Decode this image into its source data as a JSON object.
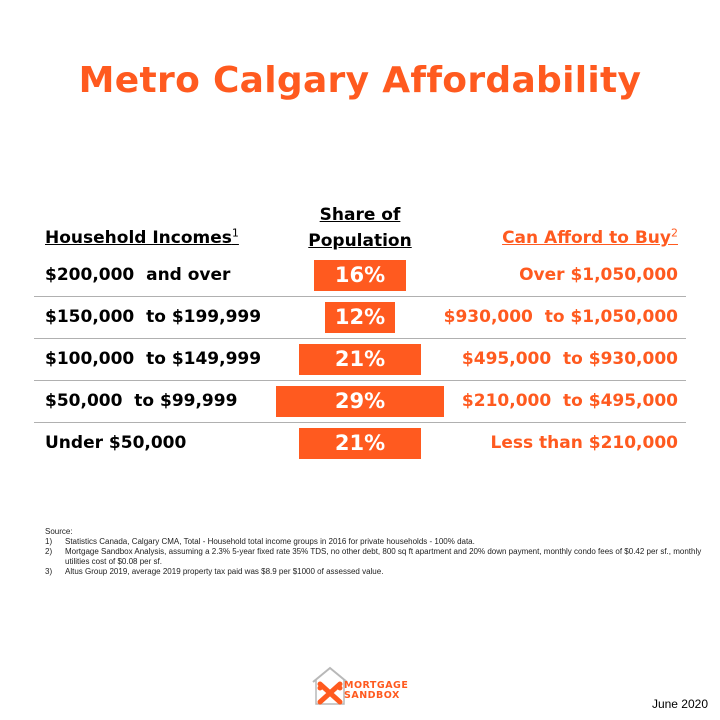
{
  "title": "Metro Calgary Affordability",
  "colors": {
    "accent": "#ff5a1f",
    "divider": "#b0b0b0",
    "text": "#000000"
  },
  "headers": {
    "income": "Household Incomes",
    "income_sup": "1",
    "share_line1": "Share of",
    "share_line2": "Population",
    "afford": "Can Afford to Buy",
    "afford_sup": "2"
  },
  "rows": [
    {
      "income": "$200,000  and over",
      "share": "16%",
      "share_value": 16,
      "afford": "Over $1,050,000"
    },
    {
      "income": "$150,000  to $199,999",
      "share": "12%",
      "share_value": 12,
      "afford": "$930,000  to $1,050,000"
    },
    {
      "income": "$100,000  to $149,999",
      "share": "21%",
      "share_value": 21,
      "afford": "$495,000  to $930,000"
    },
    {
      "income": "$50,000  to $99,999",
      "share": "29%",
      "share_value": 29,
      "afford": "$210,000  to $495,000"
    },
    {
      "income": "Under $50,000",
      "share": "21%",
      "share_value": 21,
      "afford": "Less than $210,000"
    }
  ],
  "source": {
    "label": "Source:",
    "notes": [
      {
        "num": "1)",
        "text": "Statistics Canada, Calgary CMA, Total - Household total income groups in 2016 for private households - 100% data."
      },
      {
        "num": "2)",
        "text": "Mortgage Sandbox Analysis, assuming a 2.3% 5-year fixed rate 35% TDS, no other debt, 800 sq ft apartment and 20% down payment, monthly condo fees of $0.42 per sf., monthly utilities cost of $0.08 per sf."
      },
      {
        "num": "3)",
        "text": "Altus Group 2019, average 2019 property tax paid was $8.9 per $1000 of assessed value."
      }
    ]
  },
  "logo": {
    "line1": "MORTGAGE",
    "line2": "SANDBOX",
    "icon": "house-x-logo-icon"
  },
  "date": "June 2020"
}
